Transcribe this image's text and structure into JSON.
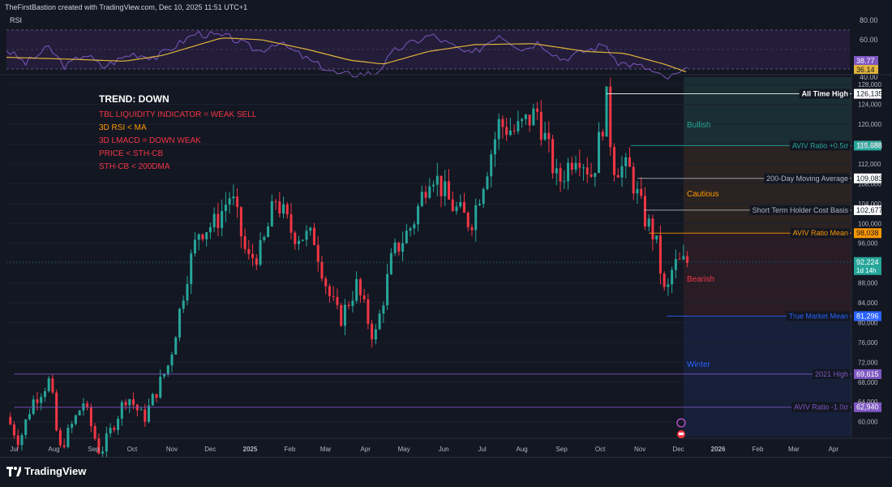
{
  "header": {
    "caption": "TheFirstBastion created with TradingView.com, Dec 10, 2025 11:51 UTC+1"
  },
  "footer": {
    "brand": "TradingView"
  },
  "rsi_panel": {
    "label": "RSI",
    "ticks": [
      "80.00",
      "60.00",
      "40.00"
    ],
    "rsi_value": "38.77",
    "ma_value": "36.14",
    "colors": {
      "rsi": "#7e57c2",
      "ma": "#e0b43b",
      "band": "#2a2340"
    }
  },
  "trend_box": {
    "title": "TREND: DOWN",
    "lines": [
      {
        "text": "TBL LIQUIDITY INDICATOR = WEAK SELL",
        "color": "#f23645"
      },
      {
        "text": "3D RSI < MA",
        "color": "#ff9800"
      },
      {
        "text": "3D LMACD = DOWN WEAK",
        "color": "#f23645"
      },
      {
        "text": "PRICE < STH-CB",
        "color": "#f23645"
      },
      {
        "text": "STH-CB < 200DMA",
        "color": "#f23645"
      }
    ]
  },
  "zones": [
    {
      "label": "Bullish",
      "color": "#26a69a"
    },
    {
      "label": "Cautious",
      "color": "#ff9800"
    },
    {
      "label": "Bearish",
      "color": "#f23645"
    },
    {
      "label": "Winter",
      "color": "#2962ff"
    }
  ],
  "levels": [
    {
      "name": "All Time High",
      "price": 126135,
      "price_label": "126,135",
      "color": "#ffffff",
      "badge_bg": "#ffffff",
      "badge_fg": "#131722",
      "x_start": "2025-10-06"
    },
    {
      "name": "AVIV Ratio +0.5σ",
      "price": 115688,
      "price_label": "115,688",
      "color": "#26a69a",
      "badge_bg": "#26a69a",
      "badge_fg": "#ffffff",
      "x_start": "2025-10-25"
    },
    {
      "name": "200-Day Moving Average",
      "price": 109083,
      "price_label": "109,083",
      "color": "#b2b5be",
      "badge_bg": "#ffffff",
      "badge_fg": "#131722",
      "x_start": "2025-10-30"
    },
    {
      "name": "Short Term Holder Cost Basis",
      "price": 102677,
      "price_label": "102,677",
      "color": "#b2b5be",
      "badge_bg": "#ffffff",
      "badge_fg": "#131722",
      "x_start": "2025-11-04"
    },
    {
      "name": "AVIV Ratio Mean",
      "price": 98038,
      "price_label": "98,038",
      "color": "#ff9800",
      "badge_bg": "#ff9800",
      "badge_fg": "#131722",
      "x_start": "2025-11-08"
    },
    {
      "name": "True Market Mean",
      "price": 81296,
      "price_label": "81,296",
      "color": "#2962ff",
      "badge_bg": "#2962ff",
      "badge_fg": "#ffffff",
      "x_start": "2025-11-22"
    },
    {
      "name": "2021 High",
      "price": 69615,
      "price_label": "69,615",
      "color": "#7e57c2",
      "badge_bg": "#7e57c2",
      "badge_fg": "#ffffff",
      "x_start": "2024-07-01"
    },
    {
      "name": "AVIV Ratio -1.0σ",
      "price": 62940,
      "price_label": "62,940",
      "color": "#7e57c2",
      "badge_bg": "#7e57c2",
      "badge_fg": "#ffffff",
      "x_start": "2024-07-01"
    }
  ],
  "current_price": {
    "value": 92224,
    "label": "92,224",
    "countdown": "1d 14h",
    "color": "#26a69a"
  },
  "chart_data": {
    "type": "candlestick",
    "symbol_interval": "3D",
    "x_ticks": [
      {
        "date": "2024-07-01",
        "label": "Jul"
      },
      {
        "date": "2024-08-01",
        "label": "Aug"
      },
      {
        "date": "2024-09-01",
        "label": "Sep"
      },
      {
        "date": "2024-10-01",
        "label": "Oct"
      },
      {
        "date": "2024-11-01",
        "label": "Nov"
      },
      {
        "date": "2024-12-01",
        "label": "Dec"
      },
      {
        "date": "2025-01-01",
        "label": "2025"
      },
      {
        "date": "2025-02-01",
        "label": "Feb"
      },
      {
        "date": "2025-03-01",
        "label": "Mar"
      },
      {
        "date": "2025-04-01",
        "label": "Apr"
      },
      {
        "date": "2025-05-01",
        "label": "May"
      },
      {
        "date": "2025-06-01",
        "label": "Jun"
      },
      {
        "date": "2025-07-01",
        "label": "Jul"
      },
      {
        "date": "2025-08-01",
        "label": "Aug"
      },
      {
        "date": "2025-09-01",
        "label": "Sep"
      },
      {
        "date": "2025-10-01",
        "label": "Oct"
      },
      {
        "date": "2025-11-01",
        "label": "Nov"
      },
      {
        "date": "2025-12-01",
        "label": "Dec"
      },
      {
        "date": "2026-01-01",
        "label": "2026"
      },
      {
        "date": "2026-02-01",
        "label": "Feb"
      },
      {
        "date": "2026-03-01",
        "label": "Mar"
      },
      {
        "date": "2026-04-01",
        "label": "Apr"
      }
    ],
    "y_ticks": [
      128000,
      124000,
      120000,
      116000,
      112000,
      108000,
      104000,
      100000,
      96000,
      92000,
      88000,
      84000,
      80000,
      76000,
      72000,
      68000,
      64000,
      60000
    ],
    "y_tick_labels": [
      "128,000",
      "124,000",
      "120,000",
      "116,000",
      "112,000",
      "108,000",
      "104,000",
      "100,000",
      "96,000",
      "92,000",
      "88,000",
      "84,000",
      "80,000",
      "76,000",
      "72,000",
      "68,000",
      "64,000",
      "60,000"
    ],
    "ylim": [
      57000,
      129500
    ],
    "x_range": [
      "2024-06-25",
      "2026-04-15"
    ],
    "up_color": "#26a69a",
    "down_color": "#f23645",
    "close_path": [
      [
        "2024-06-25",
        61000
      ],
      [
        "2024-07-05",
        56000
      ],
      [
        "2024-07-15",
        64000
      ],
      [
        "2024-07-29",
        68500
      ],
      [
        "2024-08-05",
        54000
      ],
      [
        "2024-08-24",
        64000
      ],
      [
        "2024-09-06",
        53500
      ],
      [
        "2024-09-27",
        65500
      ],
      [
        "2024-10-10",
        60500
      ],
      [
        "2024-10-30",
        72000
      ],
      [
        "2024-11-13",
        90000
      ],
      [
        "2024-11-22",
        98500
      ],
      [
        "2024-12-05",
        100000
      ],
      [
        "2024-12-17",
        106000
      ],
      [
        "2024-12-30",
        92500
      ],
      [
        "2025-01-10",
        94500
      ],
      [
        "2025-01-21",
        105000
      ],
      [
        "2025-02-03",
        98000
      ],
      [
        "2025-02-20",
        97000
      ],
      [
        "2025-03-03",
        86000
      ],
      [
        "2025-03-12",
        80500
      ],
      [
        "2025-03-25",
        87500
      ],
      [
        "2025-04-08",
        76500
      ],
      [
        "2025-04-22",
        93500
      ],
      [
        "2025-05-08",
        100000
      ],
      [
        "2025-05-22",
        111000
      ],
      [
        "2025-06-06",
        104000
      ],
      [
        "2025-06-22",
        100000
      ],
      [
        "2025-06-30",
        107000
      ],
      [
        "2025-07-14",
        120000
      ],
      [
        "2025-07-27",
        118500
      ],
      [
        "2025-08-13",
        122500
      ],
      [
        "2025-08-29",
        108000
      ],
      [
        "2025-09-13",
        115000
      ],
      [
        "2025-09-25",
        109500
      ],
      [
        "2025-10-06",
        124500
      ],
      [
        "2025-10-11",
        112000
      ],
      [
        "2025-10-24",
        110500
      ],
      [
        "2025-11-04",
        101500
      ],
      [
        "2025-11-13",
        97000
      ],
      [
        "2025-11-21",
        84500
      ],
      [
        "2025-11-27",
        91500
      ],
      [
        "2025-12-03",
        92000
      ],
      [
        "2025-12-09",
        92224
      ]
    ],
    "rsi_path": [
      [
        "2024-06-25",
        60
      ],
      [
        "2024-07-10",
        46
      ],
      [
        "2024-07-28",
        62
      ],
      [
        "2024-08-10",
        42
      ],
      [
        "2024-08-25",
        56
      ],
      [
        "2024-09-08",
        42
      ],
      [
        "2024-10-01",
        56
      ],
      [
        "2024-10-20",
        52
      ],
      [
        "2024-11-20",
        77
      ],
      [
        "2024-12-17",
        72
      ],
      [
        "2025-01-08",
        58
      ],
      [
        "2025-01-22",
        68
      ],
      [
        "2025-02-20",
        46
      ],
      [
        "2025-03-12",
        34
      ],
      [
        "2025-04-09",
        36
      ],
      [
        "2025-04-25",
        60
      ],
      [
        "2025-05-22",
        75
      ],
      [
        "2025-06-22",
        54
      ],
      [
        "2025-07-14",
        76
      ],
      [
        "2025-08-02",
        60
      ],
      [
        "2025-08-14",
        68
      ],
      [
        "2025-09-01",
        50
      ],
      [
        "2025-10-06",
        66
      ],
      [
        "2025-10-11",
        48
      ],
      [
        "2025-11-04",
        42
      ],
      [
        "2025-11-21",
        30
      ],
      [
        "2025-12-09",
        38.77
      ]
    ],
    "rsi_ma_path": [
      [
        "2024-06-25",
        52
      ],
      [
        "2024-08-15",
        50
      ],
      [
        "2024-09-25",
        48
      ],
      [
        "2024-10-25",
        54
      ],
      [
        "2024-12-10",
        72
      ],
      [
        "2025-01-10",
        70
      ],
      [
        "2025-02-15",
        60
      ],
      [
        "2025-03-20",
        49
      ],
      [
        "2025-04-15",
        45
      ],
      [
        "2025-05-20",
        58
      ],
      [
        "2025-06-25",
        65
      ],
      [
        "2025-08-10",
        66
      ],
      [
        "2025-09-20",
        58
      ],
      [
        "2025-10-20",
        56
      ],
      [
        "2025-11-20",
        45
      ],
      [
        "2025-12-09",
        36.14
      ]
    ]
  }
}
